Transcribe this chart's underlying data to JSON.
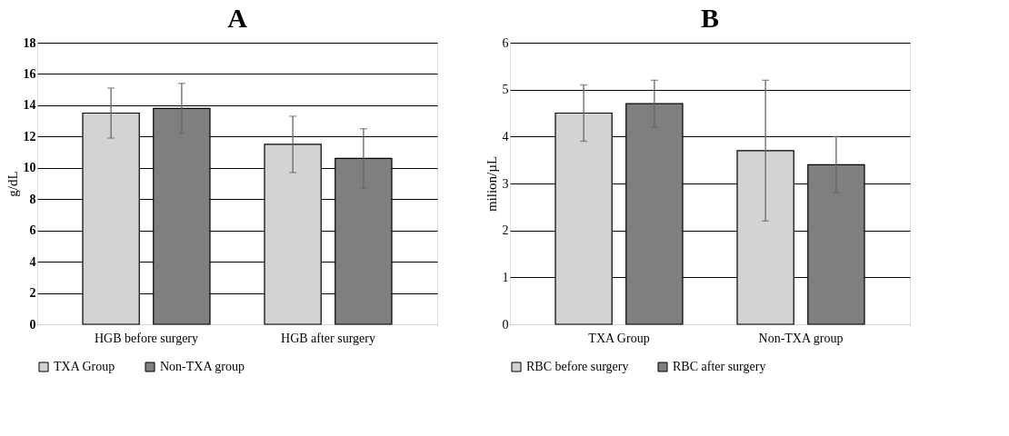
{
  "chart_data": [
    {
      "type": "bar",
      "title": "A",
      "ylabel": "g/dL",
      "categories": [
        "HGB before surgery",
        "HGB after surgery"
      ],
      "ylim": [
        0,
        18
      ],
      "yticks": [
        0,
        2,
        4,
        6,
        8,
        10,
        12,
        14,
        16,
        18
      ],
      "grid": "y",
      "legend": "bottom",
      "series": [
        {
          "name": "TXA Group",
          "color": "#d3d3d3",
          "values": [
            13.5,
            11.5
          ],
          "errors": [
            1.6,
            1.8
          ]
        },
        {
          "name": "Non-TXA group",
          "color": "#7f7f7f",
          "values": [
            13.8,
            10.6
          ],
          "errors": [
            1.6,
            1.9
          ]
        }
      ]
    },
    {
      "type": "bar",
      "title": "B",
      "ylabel": "milion/µL",
      "categories": [
        "TXA Group",
        "Non-TXA group"
      ],
      "ylim": [
        0,
        6
      ],
      "yticks": [
        0,
        1,
        2,
        3,
        4,
        5,
        6
      ],
      "grid": "y",
      "legend": "bottom",
      "series": [
        {
          "name": "RBC before surgery",
          "color": "#d3d3d3",
          "values": [
            4.5,
            3.7
          ],
          "errors": [
            0.6,
            1.5
          ]
        },
        {
          "name": "RBC after surgery",
          "color": "#7f7f7f",
          "values": [
            4.7,
            3.4
          ],
          "errors": [
            0.5,
            0.6
          ]
        }
      ]
    }
  ]
}
